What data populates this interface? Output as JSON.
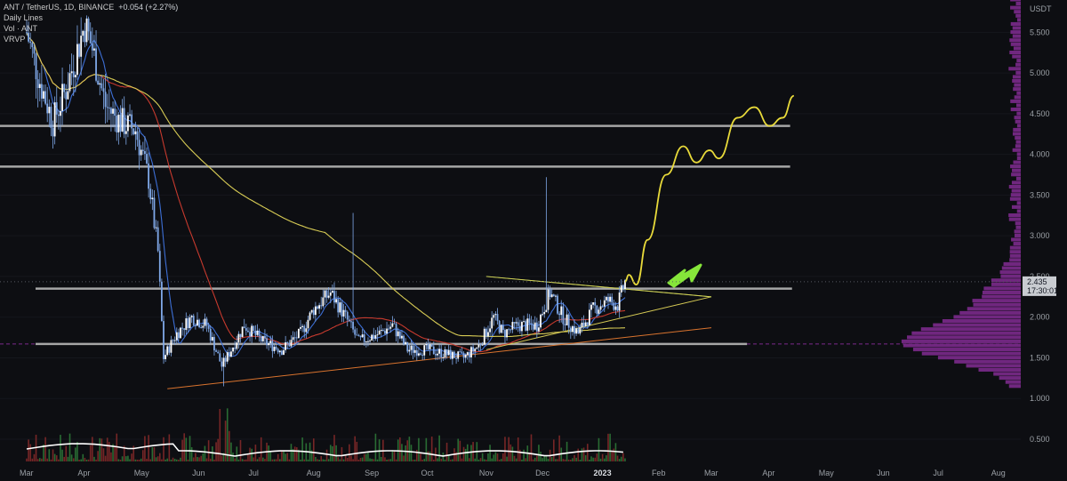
{
  "header": {
    "title": "ANT / TetherUS, 1D, BINANCE",
    "change": "+0.054 (+2.27%)",
    "indicators": [
      "Daily Lines",
      "Vol · ANT",
      "VRVP"
    ]
  },
  "price_label": {
    "value": "2.435",
    "countdown": "17:30:01"
  },
  "colors": {
    "background": "#0d0e12",
    "candle": "#7fa8e8",
    "ma_fast": "#3d6fd6",
    "ma_mid": "#c73a2e",
    "ma_slow": "#d8cc55",
    "projection": "#e8da3a",
    "arrow": "#86e63a",
    "level_line": "#a6a6a6",
    "profile": "#7b2a8c",
    "volume_ma": "#ffffff"
  },
  "chart_data": {
    "type": "candlestick",
    "title": "ANT / TetherUS, 1D, BINANCE",
    "y_unit": "USDT",
    "y_range": [
      0.3,
      6.0
    ],
    "y_ticks": [
      "5.500",
      "5.000",
      "4.500",
      "4.000",
      "3.500",
      "3.000",
      "2.500",
      "2.000",
      "1.500",
      "1.000",
      "0.500"
    ],
    "x_ticks": [
      "Mar",
      "Apr",
      "May",
      "Jun",
      "Jul",
      "Aug",
      "Sep",
      "Oct",
      "Nov",
      "Dec",
      "2023",
      "Feb",
      "Mar",
      "Apr",
      "May",
      "Jun",
      "Jul",
      "Aug"
    ],
    "x_tick_bold": "2023",
    "price_path": [
      [
        "2022-03-01",
        5.5
      ],
      [
        "2022-03-08",
        4.9
      ],
      [
        "2022-03-15",
        4.4
      ],
      [
        "2022-03-22",
        4.8
      ],
      [
        "2022-04-01",
        5.6
      ],
      [
        "2022-04-05",
        5.3
      ],
      [
        "2022-04-12",
        4.6
      ],
      [
        "2022-04-20",
        4.4
      ],
      [
        "2022-04-28",
        4.3
      ],
      [
        "2022-05-05",
        3.7
      ],
      [
        "2022-05-10",
        2.8
      ],
      [
        "2022-05-13",
        1.5
      ],
      [
        "2022-05-20",
        1.8
      ],
      [
        "2022-05-28",
        2.0
      ],
      [
        "2022-06-05",
        1.9
      ],
      [
        "2022-06-13",
        1.4
      ],
      [
        "2022-06-18",
        1.6
      ],
      [
        "2022-06-25",
        1.9
      ],
      [
        "2022-07-05",
        1.7
      ],
      [
        "2022-07-15",
        1.6
      ],
      [
        "2022-07-25",
        1.8
      ],
      [
        "2022-08-01",
        2.1
      ],
      [
        "2022-08-10",
        2.3
      ],
      [
        "2022-08-18",
        2.0
      ],
      [
        "2022-08-25",
        1.7
      ],
      [
        "2022-09-05",
        1.8
      ],
      [
        "2022-09-12",
        1.9
      ],
      [
        "2022-09-20",
        1.6
      ],
      [
        "2022-10-01",
        1.6
      ],
      [
        "2022-10-10",
        1.55
      ],
      [
        "2022-10-20",
        1.5
      ],
      [
        "2022-10-28",
        1.65
      ],
      [
        "2022-11-05",
        2.0
      ],
      [
        "2022-11-10",
        1.8
      ],
      [
        "2022-11-18",
        1.9
      ],
      [
        "2022-11-28",
        1.9
      ],
      [
        "2022-12-05",
        2.3
      ],
      [
        "2022-12-12",
        2.0
      ],
      [
        "2022-12-20",
        1.8
      ],
      [
        "2022-12-28",
        2.1
      ],
      [
        "2023-01-05",
        2.2
      ],
      [
        "2023-01-10",
        2.15
      ],
      [
        "2023-01-14",
        2.435
      ]
    ],
    "price_range_hint": {
      "high_spike_date": "2022-12-03",
      "high_spike_value": 3.72
    },
    "horizontal_levels": [
      {
        "y": 4.35,
        "from": "2022-03-01",
        "to": "2023-04-12"
      },
      {
        "y": 3.85,
        "from": "2022-03-01",
        "to": "2023-04-12"
      },
      {
        "y": 2.35,
        "from": "2022-03-01",
        "to": "2023-04-13"
      },
      {
        "y": 1.67,
        "from": "2022-03-01",
        "to": "2023-03-20"
      }
    ],
    "trendlines": [
      {
        "color": "#d9732e",
        "points": [
          [
            "2022-05-15",
            1.12
          ],
          [
            "2023-03-01",
            1.87
          ]
        ]
      },
      {
        "color": "#d8cc55",
        "points": [
          [
            "2022-11-01",
            1.6
          ],
          [
            "2023-03-01",
            2.25
          ]
        ]
      },
      {
        "color": "#5fbf4e",
        "points": [
          [
            "2022-11-01",
            2.5
          ],
          [
            "2023-03-01",
            2.25
          ]
        ]
      },
      {
        "color": "#d8cc55",
        "points": [
          [
            "2022-11-01",
            2.5
          ],
          [
            "2023-03-01",
            2.25
          ]
        ]
      }
    ],
    "projection_path": [
      [
        "2023-01-14",
        2.435
      ],
      [
        "2023-01-16",
        2.52
      ],
      [
        "2023-01-20",
        2.4
      ],
      [
        "2023-01-26",
        2.95
      ],
      [
        "2023-02-05",
        3.75
      ],
      [
        "2023-02-14",
        4.1
      ],
      [
        "2023-02-21",
        3.9
      ],
      [
        "2023-02-28",
        4.05
      ],
      [
        "2023-03-05",
        3.95
      ],
      [
        "2023-03-15",
        4.45
      ],
      [
        "2023-03-24",
        4.58
      ],
      [
        "2023-04-01",
        4.35
      ],
      [
        "2023-04-08",
        4.45
      ],
      [
        "2023-04-14",
        4.72
      ]
    ],
    "volume_profile_peak": 1.67
  }
}
